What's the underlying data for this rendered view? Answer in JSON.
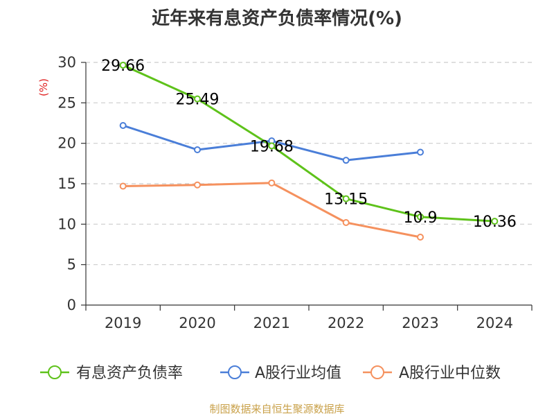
{
  "title": "近年来有息资产负债率情况(%)",
  "source": "制图数据来自恒生聚源数据库",
  "colors": {
    "series_1": "#5ec21a",
    "series_2": "#4a7ed8",
    "series_3": "#f5915e",
    "axis": "#333333",
    "grid": "#cccccc",
    "unit": "#e02020"
  },
  "chart_data": {
    "type": "line",
    "title": "近年来有息资产负债率情况(%)",
    "ylabel": "(%)",
    "xlabel": "",
    "categories": [
      "2019",
      "2020",
      "2021",
      "2022",
      "2023",
      "2024"
    ],
    "ylim": [
      0,
      30
    ],
    "yticks": [
      0,
      5,
      10,
      15,
      20,
      25,
      30
    ],
    "grid": "horizontal dashed",
    "legend_position": "bottom",
    "series": [
      {
        "name": "有息资产负债率",
        "values": [
          29.66,
          25.49,
          19.68,
          13.15,
          10.9,
          10.36
        ],
        "labels": [
          "29.66",
          "25.49",
          "19.68",
          "13.15",
          "10.9",
          "10.36"
        ]
      },
      {
        "name": "A股行业均值",
        "values": [
          22.2,
          19.2,
          20.3,
          17.9,
          18.9,
          null
        ]
      },
      {
        "name": "A股行业中位数",
        "values": [
          14.7,
          14.85,
          15.1,
          10.2,
          8.4,
          null
        ]
      }
    ]
  }
}
